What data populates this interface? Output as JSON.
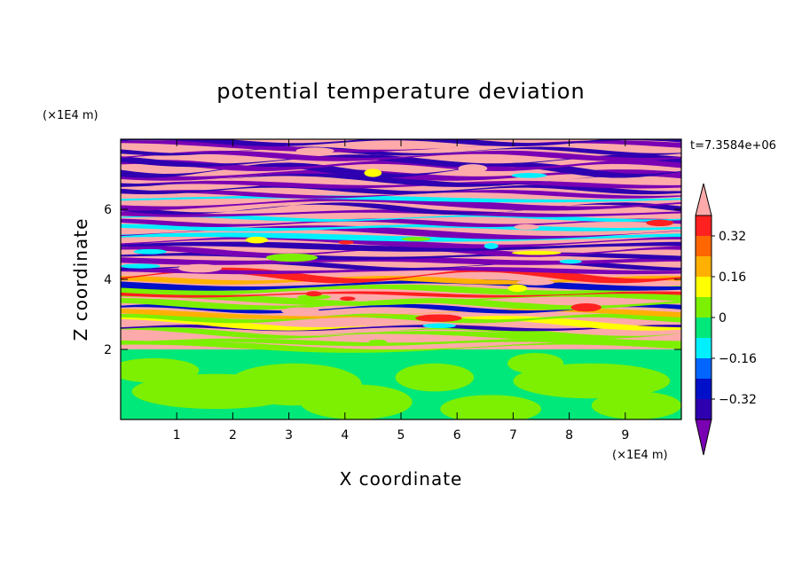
{
  "chart_data": {
    "type": "heatmap",
    "title": "potential temperature deviation",
    "xlabel": "X coordinate",
    "ylabel": "Z coordinate",
    "x_unit": "(×1E4 m)",
    "y_unit": "(×1E4 m)",
    "time_label": "t=7.3584e+06",
    "xlim": [
      0,
      10
    ],
    "ylim": [
      0,
      8
    ],
    "x_ticks": [
      "1",
      "2",
      "3",
      "4",
      "5",
      "6",
      "7",
      "8",
      "9"
    ],
    "y_ticks": [
      "2",
      "4",
      "6"
    ],
    "colorbar": {
      "levels": [
        -0.48,
        -0.4,
        -0.32,
        -0.24,
        -0.16,
        -0.08,
        0,
        0.08,
        0.16,
        0.24,
        0.32,
        0.4,
        0.48
      ],
      "labels": [
        "0.32",
        "0.16",
        "0",
        "−0.16",
        "−0.32"
      ],
      "colors": [
        "#7a00b4",
        "#2e00b0",
        "#0010c8",
        "#0066ff",
        "#00f0ff",
        "#00e87a",
        "#7cf000",
        "#ffff00",
        "#ffb000",
        "#ff6600",
        "#ff2020",
        "#ffaaaa"
      ],
      "extend": "both"
    },
    "description_bands": [
      {
        "zmin": 0,
        "zmax": 2.0,
        "colors": [
          "#00e87a",
          "#7cf000"
        ]
      },
      {
        "zmin": 2.0,
        "zmax": 8.0,
        "colors": [
          "#ffaaaa",
          "#7a00b4",
          "#2e00b0",
          "#0010c8",
          "#00f0ff",
          "#7cf000",
          "#ffff00",
          "#ff2020"
        ]
      }
    ]
  }
}
